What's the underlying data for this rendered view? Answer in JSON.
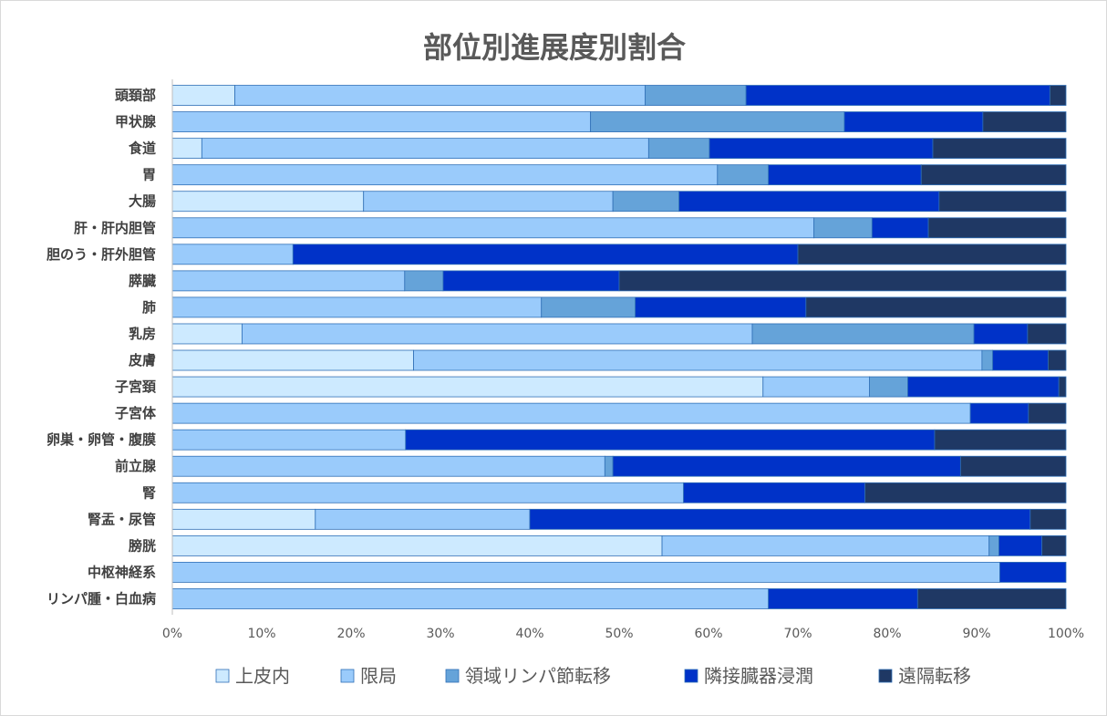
{
  "chart_data": {
    "type": "bar",
    "orientation": "horizontal",
    "stacked": "percent",
    "title": "部位別進展度別割合",
    "categories": [
      "頭頚部",
      "甲状腺",
      "食道",
      "胃",
      "大腸",
      "肝・肝内胆管",
      "胆のう・肝外胆管",
      "膵臓",
      "肺",
      "乳房",
      "皮膚",
      "子宮頚",
      "子宮体",
      "卵巣・卵管・腹膜",
      "前立腺",
      "腎",
      "腎盂・尿管",
      "膀胱",
      "中枢神経系",
      "リンパ腫・白血病"
    ],
    "series": [
      {
        "name": "上皮内",
        "color": "#cdeaff",
        "values": [
          7.0,
          0,
          3.3,
          0,
          21.4,
          0,
          0,
          0,
          0,
          7.8,
          27.0,
          66.1,
          0,
          0,
          0,
          0,
          16.0,
          54.8,
          0,
          0
        ]
      },
      {
        "name": "限局",
        "color": "#9acbfb",
        "values": [
          45.9,
          46.8,
          50.0,
          61.0,
          27.9,
          71.8,
          13.5,
          26.0,
          41.3,
          57.1,
          63.6,
          11.9,
          89.3,
          26.1,
          48.4,
          57.2,
          24.0,
          36.6,
          92.6,
          66.7
        ]
      },
      {
        "name": "領域リンパ節転移",
        "color": "#65a3d9",
        "values": [
          11.3,
          28.4,
          6.8,
          5.7,
          7.4,
          6.5,
          0,
          4.3,
          10.5,
          24.8,
          1.2,
          4.3,
          0,
          0,
          0.9,
          0,
          0,
          1.1,
          0,
          0
        ]
      },
      {
        "name": "隣接臓器浸潤",
        "color": "#0032c8",
        "values": [
          34.0,
          15.5,
          25.0,
          17.1,
          29.1,
          6.3,
          56.5,
          19.7,
          19.1,
          6.0,
          6.2,
          16.9,
          6.5,
          59.2,
          38.9,
          20.3,
          56.0,
          4.8,
          7.4,
          16.7
        ]
      },
      {
        "name": "遠隔転移",
        "color": "#1f3864",
        "values": [
          1.8,
          9.3,
          14.9,
          16.2,
          14.2,
          15.4,
          30.0,
          50.0,
          29.1,
          4.3,
          2.0,
          0.8,
          4.2,
          14.7,
          11.8,
          22.5,
          4.0,
          2.7,
          0,
          16.6
        ]
      }
    ],
    "x_ticks": [
      "0%",
      "10%",
      "20%",
      "30%",
      "40%",
      "50%",
      "60%",
      "70%",
      "80%",
      "90%",
      "100%"
    ],
    "xlim": [
      0,
      100
    ],
    "legend_position": "bottom",
    "grid": false
  }
}
